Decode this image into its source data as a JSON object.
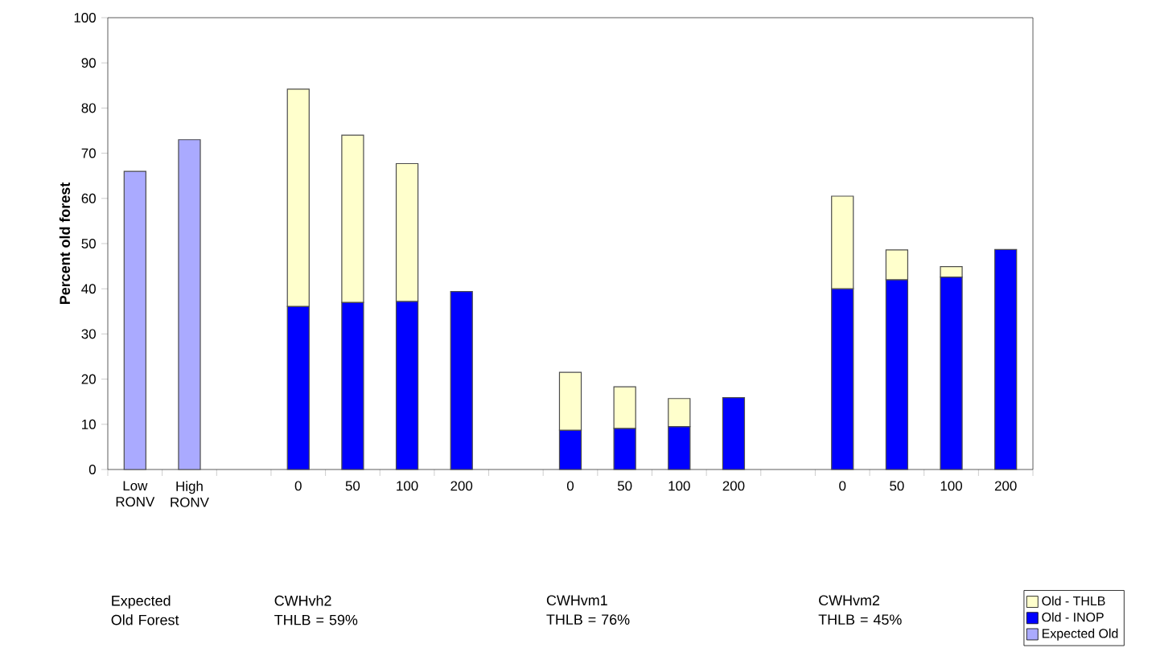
{
  "chart_data": {
    "type": "bar",
    "stacked": true,
    "ylabel": "Percent old forest",
    "categories": [
      "Low RONV",
      "High RONV",
      null,
      "0",
      "50",
      "100",
      "200",
      null,
      "0",
      "50",
      "100",
      "200",
      null,
      "0",
      "50",
      "100",
      "200"
    ],
    "series": [
      {
        "name": "Expected Old",
        "color": "#aaaaff",
        "values": [
          66,
          73,
          null,
          null,
          null,
          null,
          null,
          null,
          null,
          null,
          null,
          null,
          null,
          null,
          null,
          null,
          null
        ]
      },
      {
        "name": "Old - INOP",
        "color": "#0000ff",
        "values": [
          null,
          null,
          null,
          36.1,
          37,
          37.2,
          39.4,
          null,
          8.7,
          9.1,
          9.5,
          15.9,
          null,
          40,
          42,
          42.6,
          48.7
        ]
      },
      {
        "name": "Old - THLB",
        "color": "#ffffcc",
        "values": [
          null,
          null,
          null,
          48.1,
          37,
          30.5,
          null,
          null,
          12.8,
          9.2,
          6.2,
          null,
          null,
          20.5,
          6.6,
          2.3,
          null
        ]
      }
    ],
    "ylim": [
      0,
      100
    ],
    "yticks": [
      0,
      10,
      20,
      30,
      40,
      50,
      60,
      70,
      80,
      90,
      100
    ],
    "legend": "bottom right",
    "annotations": [
      "Expected Old Forest",
      "CWHvh2 THLB = 59%",
      "CWHvm1 THLB = 76%",
      "CWHvm2 THLB = 45%"
    ]
  }
}
